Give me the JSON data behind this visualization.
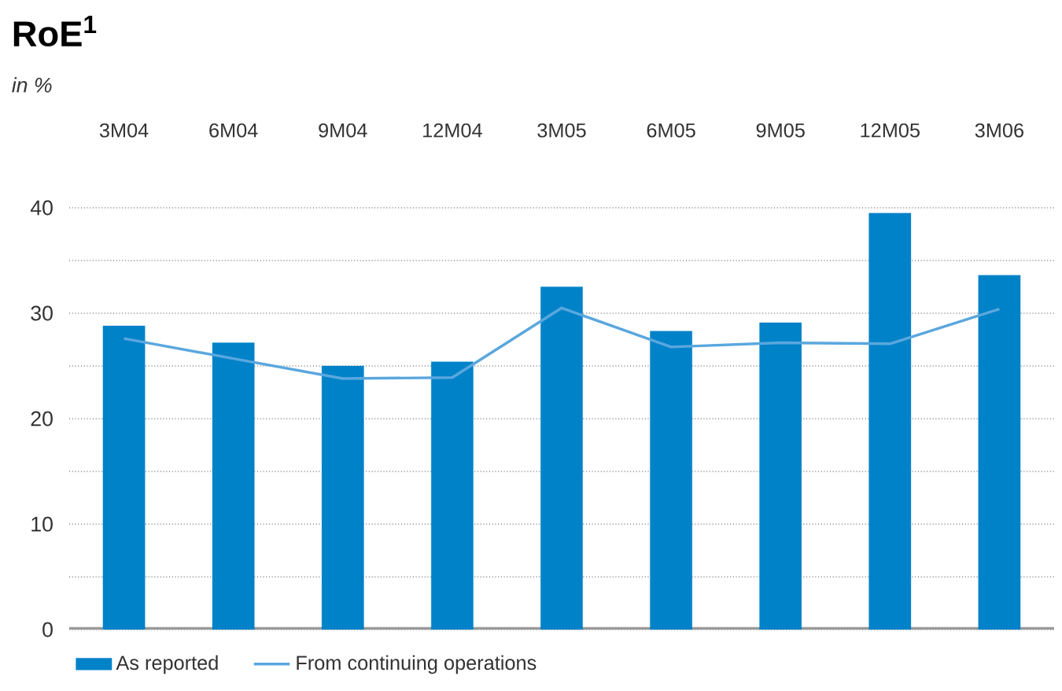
{
  "chart_data": {
    "type": "bar",
    "title": "RoE$^{1}$",
    "subtitle": "in %",
    "categories": [
      "3M04",
      "6M04",
      "9M04",
      "12M04",
      "3M05",
      "6M05",
      "9M05",
      "12M05",
      "3M06"
    ],
    "series": [
      {
        "name": "As reported",
        "color": "#0082c8",
        "values": [
          28.8,
          27.2,
          25.0,
          25.4,
          32.5,
          28.3,
          29.1,
          39.5,
          33.6
        ]
      },
      {
        "name": "From continuing operations",
        "type": "line",
        "color": "#5aa7de",
        "values": [
          27.6,
          25.7,
          23.8,
          23.9,
          30.5,
          26.8,
          27.2,
          27.1,
          30.4
        ]
      }
    ],
    "ylim": [
      0,
      40
    ],
    "yticks": [
      0,
      {
        "value": 5,
        "label": null
      },
      10,
      {
        "value": 15,
        "label": null
      },
      20,
      {
        "value": 25,
        "label": null
      },
      30,
      {
        "value": 35,
        "label": null
      },
      40
    ],
    "grid": "y",
    "legend": "bottom left"
  }
}
